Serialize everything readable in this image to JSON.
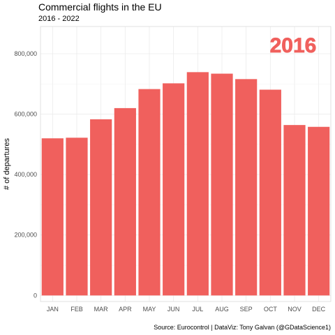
{
  "chart_data": {
    "type": "bar",
    "title": "Commercial flights in the EU",
    "subtitle": "2016 - 2022",
    "ylabel": "# of departures",
    "xlabel": "",
    "categories": [
      "JAN",
      "FEB",
      "MAR",
      "APR",
      "MAY",
      "JUN",
      "JUL",
      "AUG",
      "SEP",
      "OCT",
      "NOV",
      "DEC"
    ],
    "values": [
      520000,
      522000,
      583000,
      620000,
      683000,
      702000,
      739000,
      734000,
      716000,
      681000,
      564000,
      558000
    ],
    "ylim": [
      -20000,
      890000
    ],
    "yticks": [
      0,
      200000,
      400000,
      600000,
      800000
    ],
    "ytick_labels": [
      "0",
      "200,000",
      "400,000",
      "600,000",
      "800,000"
    ],
    "annotation": "2016",
    "caption": "Source: Eurocontrol  |  DataViz: Tony Galvan (@GDataScience1)",
    "grid": true,
    "bar_color": "#f0605d",
    "annotation_color": "#f0605d"
  }
}
